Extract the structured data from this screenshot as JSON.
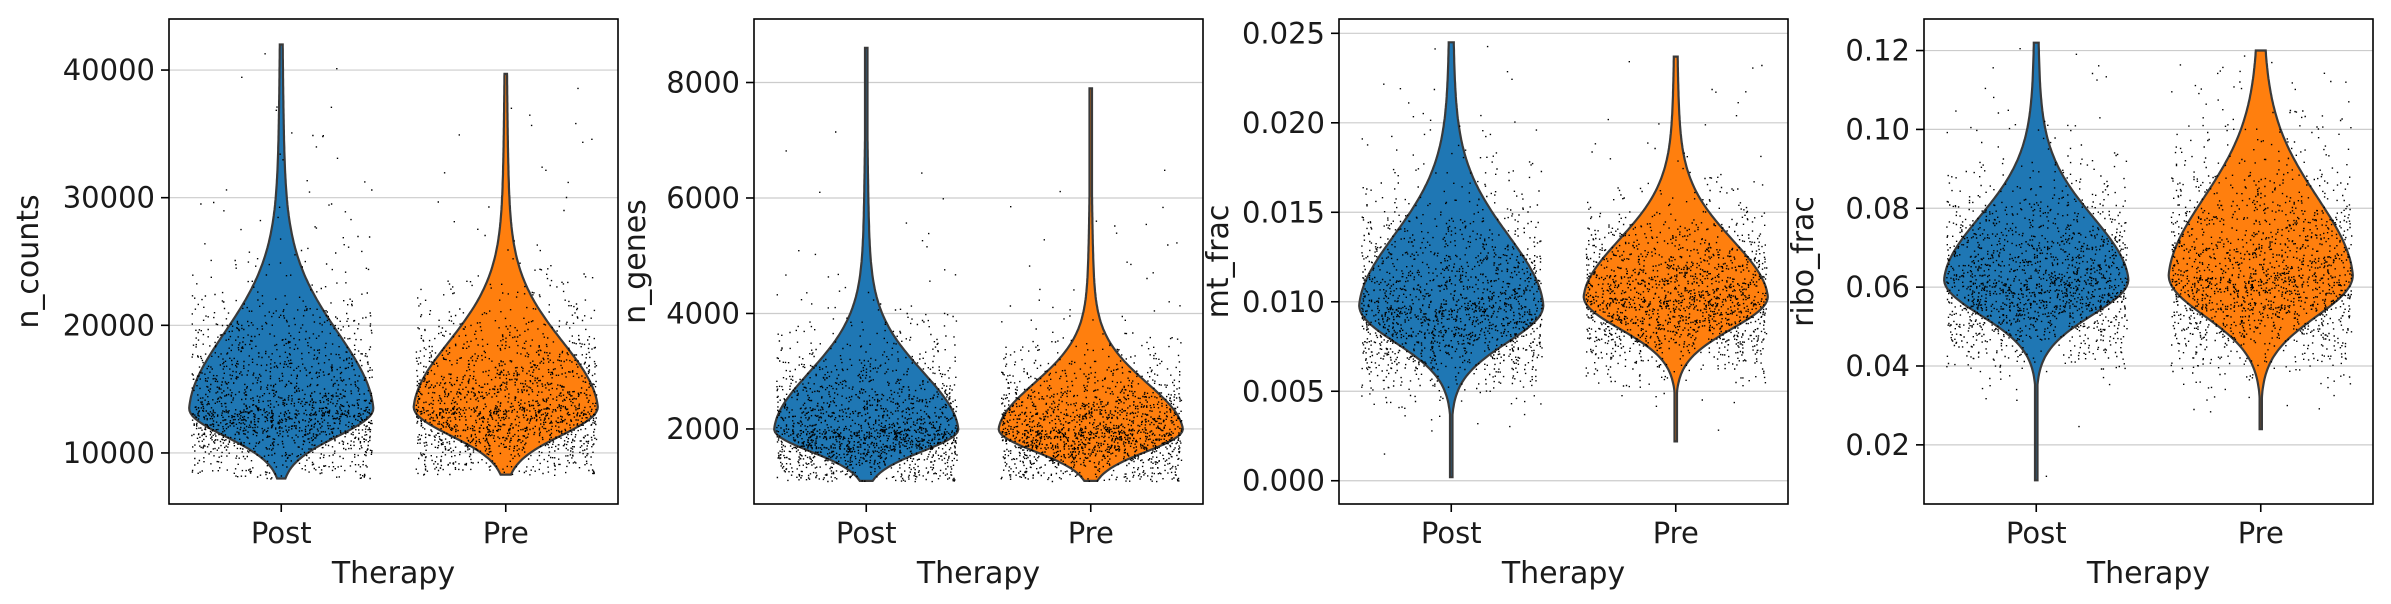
{
  "colors": {
    "post": "#1f77b4",
    "pre": "#ff7f0e",
    "points": "#000000",
    "grid": "#cccccc"
  },
  "chart_data": [
    {
      "type": "violin",
      "xlabel": "Therapy",
      "ylabel": "n_counts",
      "categories": [
        "Post",
        "Pre"
      ],
      "ylim": [
        6000,
        44000
      ],
      "yticks": [
        10000,
        20000,
        30000,
        40000
      ],
      "ytick_labels": [
        "10000",
        "20000",
        "30000",
        "40000"
      ],
      "grid": "horizontal",
      "series": [
        {
          "category": "Post",
          "min": 8000,
          "max": 42000,
          "median": 13500,
          "q1": 11800,
          "q3": 16500,
          "spread": 5500
        },
        {
          "category": "Pre",
          "min": 8300,
          "max": 39700,
          "median": 13600,
          "q1": 11900,
          "q3": 16200,
          "spread": 4800
        }
      ]
    },
    {
      "type": "violin",
      "xlabel": "Therapy",
      "ylabel": "n_genes",
      "categories": [
        "Post",
        "Pre"
      ],
      "ylim": [
        700,
        9100
      ],
      "yticks": [
        2000,
        4000,
        6000,
        8000
      ],
      "ytick_labels": [
        "2000",
        "4000",
        "6000",
        "8000"
      ],
      "grid": "horizontal",
      "series": [
        {
          "category": "Post",
          "min": 1100,
          "max": 8600,
          "median": 2000,
          "q1": 1700,
          "q3": 2500,
          "spread": 1200
        },
        {
          "category": "Pre",
          "min": 1100,
          "max": 7900,
          "median": 2000,
          "q1": 1700,
          "q3": 2400,
          "spread": 1000
        }
      ]
    },
    {
      "type": "violin",
      "xlabel": "Therapy",
      "ylabel": "mt_frac",
      "categories": [
        "Post",
        "Pre"
      ],
      "ylim": [
        -0.0013,
        0.0258
      ],
      "yticks": [
        0.0,
        0.005,
        0.01,
        0.015,
        0.02,
        0.025
      ],
      "ytick_labels": [
        "0.000",
        "0.005",
        "0.010",
        "0.015",
        "0.020",
        "0.025"
      ],
      "grid": "horizontal",
      "series": [
        {
          "category": "Post",
          "min": 0.0002,
          "max": 0.0245,
          "median": 0.0098,
          "q1": 0.0082,
          "q3": 0.0118,
          "spread": 0.0034
        },
        {
          "category": "Pre",
          "min": 0.0022,
          "max": 0.0237,
          "median": 0.0103,
          "q1": 0.0089,
          "q3": 0.0119,
          "spread": 0.003
        }
      ]
    },
    {
      "type": "violin",
      "xlabel": "Therapy",
      "ylabel": "ribo_frac",
      "categories": [
        "Post",
        "Pre"
      ],
      "ylim": [
        0.005,
        0.128
      ],
      "yticks": [
        0.02,
        0.04,
        0.06,
        0.08,
        0.1,
        0.12
      ],
      "ytick_labels": [
        "0.02",
        "0.04",
        "0.06",
        "0.08",
        "0.10",
        "0.12"
      ],
      "grid": "horizontal",
      "series": [
        {
          "category": "Post",
          "min": 0.011,
          "max": 0.122,
          "median": 0.062,
          "q1": 0.055,
          "q3": 0.07,
          "spread": 0.02
        },
        {
          "category": "Pre",
          "min": 0.024,
          "max": 0.12,
          "median": 0.063,
          "q1": 0.055,
          "q3": 0.073,
          "spread": 0.022
        }
      ]
    }
  ]
}
